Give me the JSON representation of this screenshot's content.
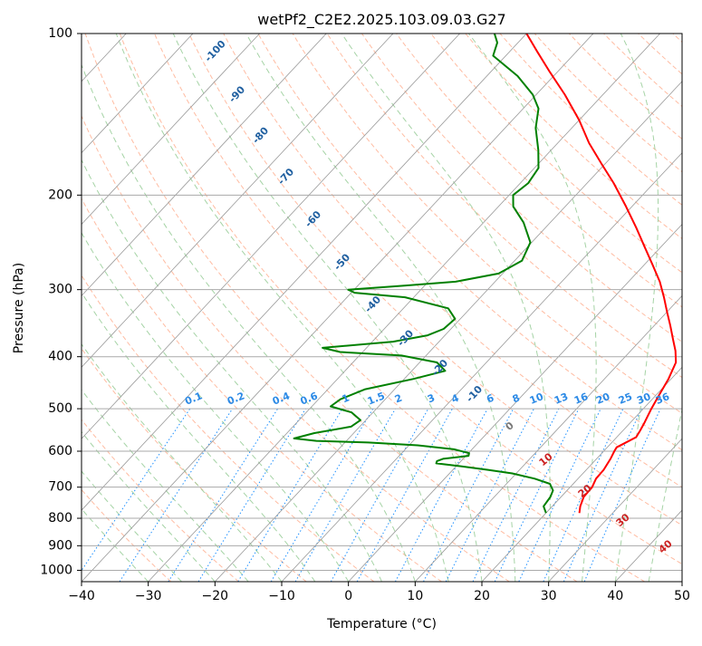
{
  "chart_data": {
    "type": "line",
    "chart_kind": "skew-T log-P diagram",
    "title": "wetPf2_C2E2.2025.103.09.03.G27",
    "xlabel": "Temperature (°C)",
    "ylabel": "Pressure (hPa)",
    "xlim": [
      -40,
      50
    ],
    "ylim_hpa": [
      1050,
      100
    ],
    "y_scale": "log",
    "skew_deg_per_decade": 75.1,
    "grid": true,
    "x_ticks": [
      -40,
      -30,
      -20,
      -10,
      0,
      10,
      20,
      30,
      40,
      50
    ],
    "x_tick_labels": [
      "−40",
      "−30",
      "−20",
      "−10",
      "0",
      "10",
      "20",
      "30",
      "40",
      "50"
    ],
    "y_ticks": [
      100,
      200,
      300,
      400,
      500,
      600,
      700,
      800,
      900,
      1000
    ],
    "y_tick_labels": [
      "100",
      "200",
      "300",
      "400",
      "500",
      "600",
      "700",
      "800",
      "900",
      "1000"
    ],
    "background_lines": {
      "isotherm_color": "#999999",
      "dry_adiabat_color": "#ffa07a",
      "moist_adiabat_color": "#8fc88f",
      "mixing_ratio_color": "#1e90ff",
      "isotherm_step_c": 10,
      "dry_adiabat_labels": [
        "0",
        "10",
        "20",
        "30",
        "40"
      ],
      "mixing_ratio_labels": [
        "0.1",
        "0.2",
        "0.4",
        "0.6",
        "1",
        "1.5",
        "2",
        "3",
        "4",
        "6",
        "8",
        "10",
        "13",
        "16",
        "20",
        "25",
        "30",
        "36"
      ],
      "mixing_ratio_values": [
        0.1,
        0.2,
        0.4,
        0.6,
        1,
        1.5,
        2,
        3,
        4,
        6,
        8,
        10,
        13,
        16,
        20,
        25,
        30,
        36
      ]
    },
    "isotherm_labels": [
      "-100",
      "-90",
      "-80",
      "-70",
      "-60",
      "-50",
      "-40",
      "-30",
      "-20",
      "-10"
    ],
    "series": [
      {
        "role": "temperature",
        "color": "#ff0000",
        "points": [
          {
            "p": 782,
            "t": 25.0
          },
          {
            "p": 760,
            "t": 24.2
          },
          {
            "p": 730,
            "t": 23.4
          },
          {
            "p": 700,
            "t": 23.3
          },
          {
            "p": 675,
            "t": 22.7
          },
          {
            "p": 650,
            "t": 22.6
          },
          {
            "p": 620,
            "t": 22.1
          },
          {
            "p": 600,
            "t": 21.6
          },
          {
            "p": 590,
            "t": 21.4
          },
          {
            "p": 580,
            "t": 22.0
          },
          {
            "p": 565,
            "t": 22.9
          },
          {
            "p": 550,
            "t": 22.6
          },
          {
            "p": 530,
            "t": 22.1
          },
          {
            "p": 500,
            "t": 21.2
          },
          {
            "p": 470,
            "t": 20.4
          },
          {
            "p": 440,
            "t": 19.6
          },
          {
            "p": 410,
            "t": 18.4
          },
          {
            "p": 390,
            "t": 16.7
          },
          {
            "p": 370,
            "t": 14.6
          },
          {
            "p": 350,
            "t": 12.4
          },
          {
            "p": 330,
            "t": 10.0
          },
          {
            "p": 310,
            "t": 7.5
          },
          {
            "p": 290,
            "t": 4.7
          },
          {
            "p": 270,
            "t": 1.3
          },
          {
            "p": 250,
            "t": -2.4
          },
          {
            "p": 230,
            "t": -6.4
          },
          {
            "p": 210,
            "t": -10.9
          },
          {
            "p": 190,
            "t": -16.0
          },
          {
            "p": 175,
            "t": -20.5
          },
          {
            "p": 160,
            "t": -25.3
          },
          {
            "p": 145,
            "t": -30.0
          },
          {
            "p": 130,
            "t": -35.7
          },
          {
            "p": 118,
            "t": -41.1
          },
          {
            "p": 108,
            "t": -45.9
          },
          {
            "p": 100,
            "t": -50.0
          }
        ]
      },
      {
        "role": "dewpoint",
        "color": "#008000",
        "points": [
          {
            "p": 782,
            "t": 20.0
          },
          {
            "p": 760,
            "t": 18.7
          },
          {
            "p": 730,
            "t": 18.4
          },
          {
            "p": 710,
            "t": 17.9
          },
          {
            "p": 690,
            "t": 16.5
          },
          {
            "p": 675,
            "t": 13.5
          },
          {
            "p": 660,
            "t": 9.4
          },
          {
            "p": 650,
            "t": 5.3
          },
          {
            "p": 640,
            "t": 0.7
          },
          {
            "p": 632,
            "t": -3.4
          },
          {
            "p": 626,
            "t": -3.6
          },
          {
            "p": 620,
            "t": -3.0
          },
          {
            "p": 612,
            "t": 0.4
          },
          {
            "p": 605,
            "t": 0.1
          },
          {
            "p": 595,
            "t": -2.7
          },
          {
            "p": 585,
            "t": -8.7
          },
          {
            "p": 578,
            "t": -16.5
          },
          {
            "p": 574,
            "t": -24.5
          },
          {
            "p": 568,
            "t": -28.2
          },
          {
            "p": 555,
            "t": -25.9
          },
          {
            "p": 540,
            "t": -21.3
          },
          {
            "p": 525,
            "t": -20.8
          },
          {
            "p": 508,
            "t": -23.2
          },
          {
            "p": 495,
            "t": -27.2
          },
          {
            "p": 480,
            "t": -26.7
          },
          {
            "p": 460,
            "t": -24.4
          },
          {
            "p": 440,
            "t": -18.6
          },
          {
            "p": 425,
            "t": -15.0
          },
          {
            "p": 410,
            "t": -17.4
          },
          {
            "p": 398,
            "t": -23.7
          },
          {
            "p": 392,
            "t": -33.4
          },
          {
            "p": 385,
            "t": -36.6
          },
          {
            "p": 375,
            "t": -26.9
          },
          {
            "p": 365,
            "t": -22.6
          },
          {
            "p": 355,
            "t": -21.1
          },
          {
            "p": 340,
            "t": -20.8
          },
          {
            "p": 325,
            "t": -23.3
          },
          {
            "p": 310,
            "t": -31.3
          },
          {
            "p": 304,
            "t": -39.5
          },
          {
            "p": 300,
            "t": -40.9
          },
          {
            "p": 295,
            "t": -33.0
          },
          {
            "p": 290,
            "t": -25.9
          },
          {
            "p": 280,
            "t": -20.6
          },
          {
            "p": 265,
            "t": -18.9
          },
          {
            "p": 245,
            "t": -20.2
          },
          {
            "p": 225,
            "t": -24.0
          },
          {
            "p": 210,
            "t": -27.8
          },
          {
            "p": 200,
            "t": -29.4
          },
          {
            "p": 190,
            "t": -28.8
          },
          {
            "p": 178,
            "t": -29.4
          },
          {
            "p": 165,
            "t": -31.9
          },
          {
            "p": 150,
            "t": -35.4
          },
          {
            "p": 138,
            "t": -37.7
          },
          {
            "p": 130,
            "t": -40.5
          },
          {
            "p": 120,
            "t": -45.4
          },
          {
            "p": 110,
            "t": -51.9
          },
          {
            "p": 104,
            "t": -53.1
          },
          {
            "p": 100,
            "t": -54.8
          }
        ]
      }
    ]
  }
}
